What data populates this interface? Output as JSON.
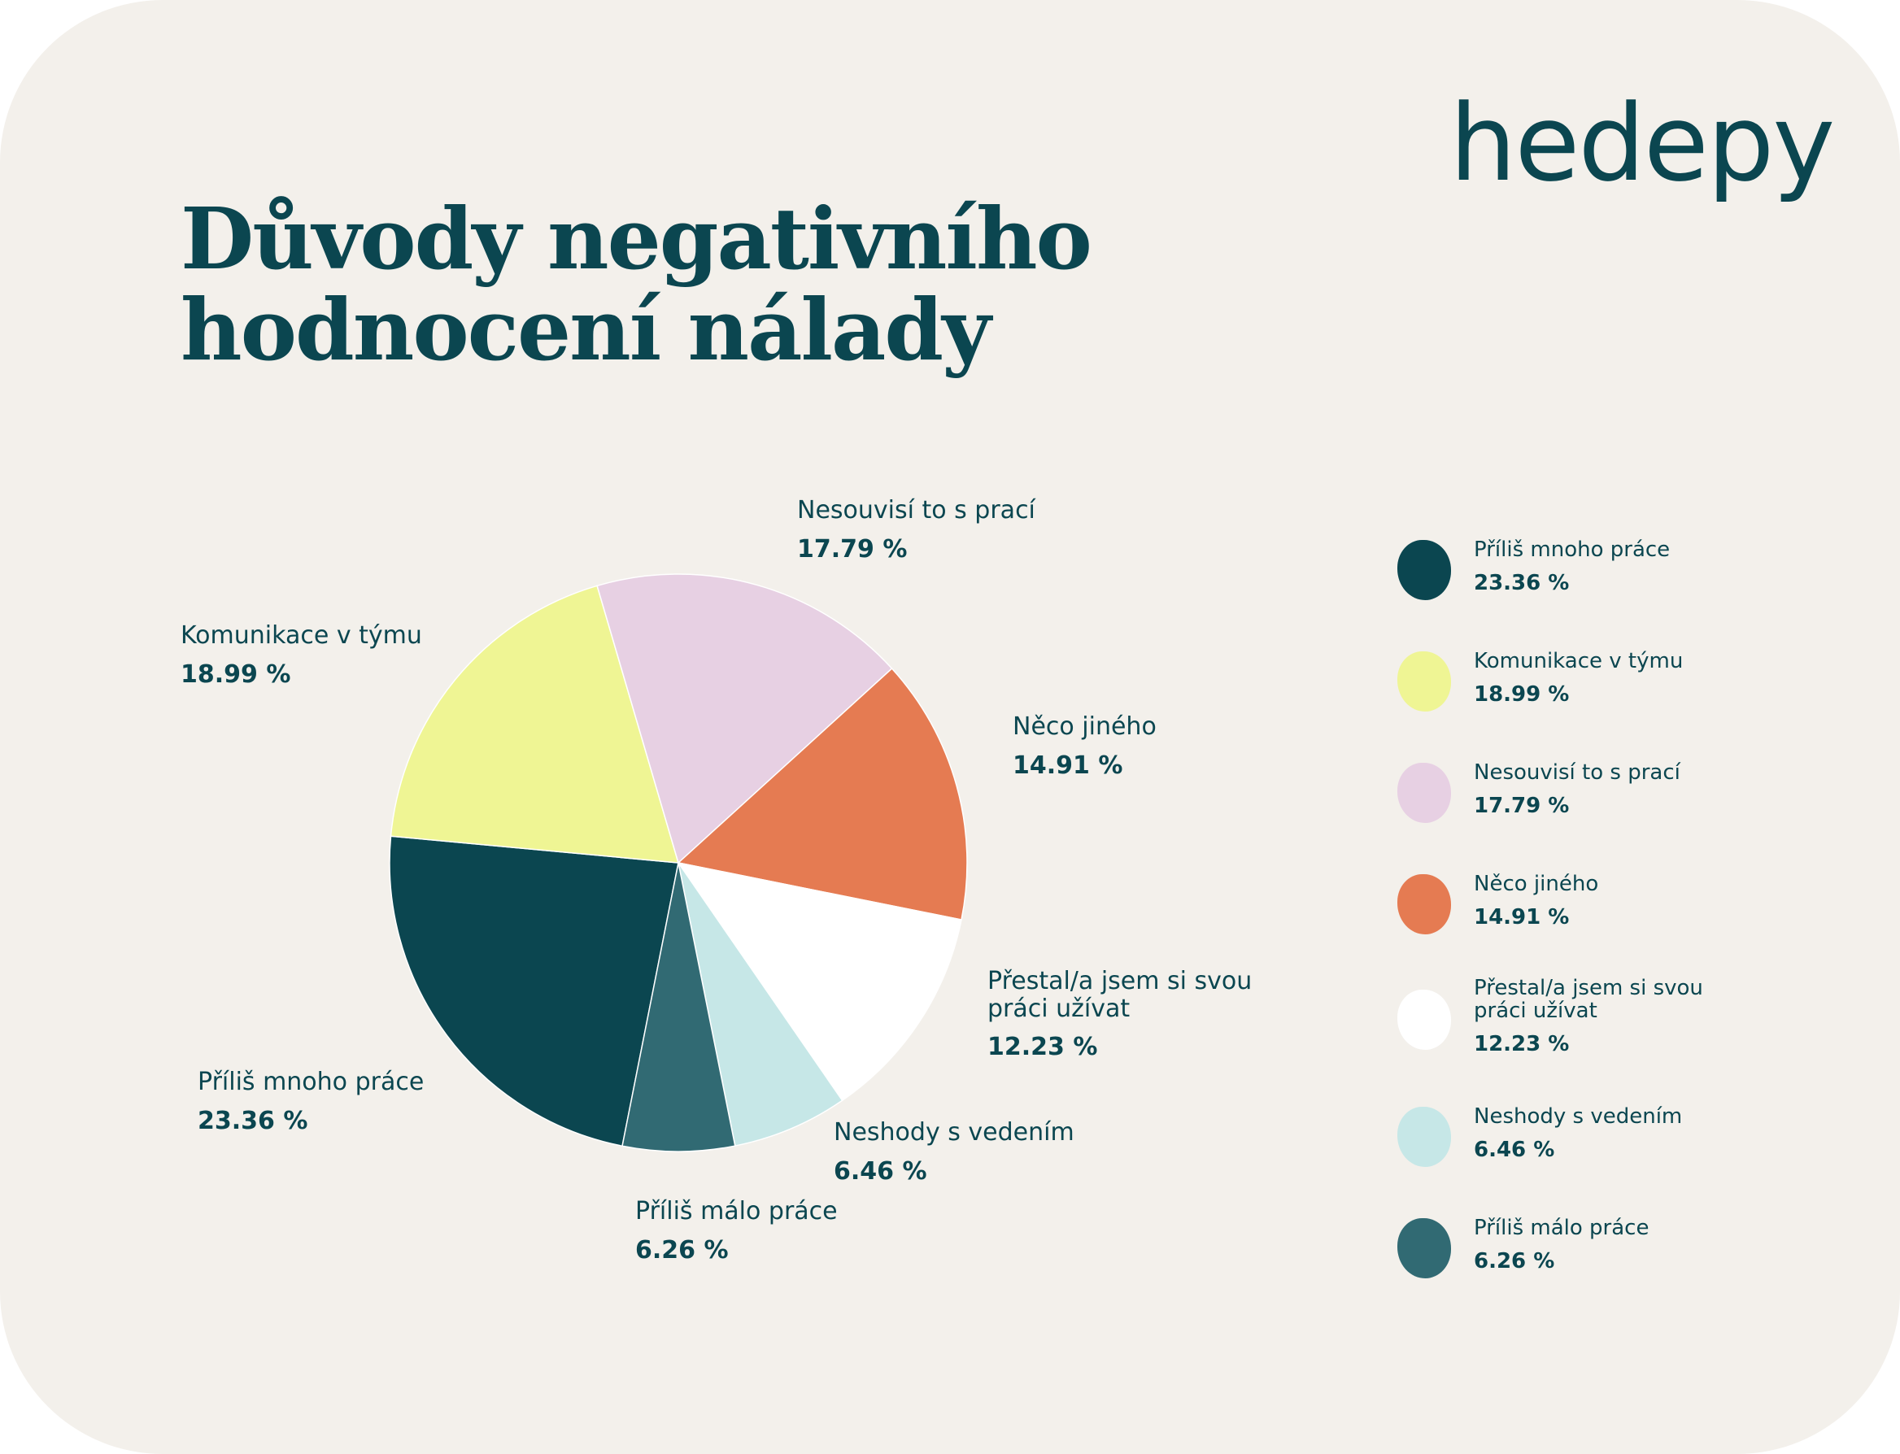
{
  "title_line1": "Důvody negativního",
  "title_line2": "hodnocení nálady",
  "logo": "hedepy",
  "chart_data": {
    "type": "pie",
    "title": "Důvody negativního hodnocení nálady",
    "slices": [
      {
        "label": "Příliš mnoho práce",
        "label_lines": [
          "Příliš mnoho práce"
        ],
        "value": 23.36,
        "display": "23.36 %",
        "color": "#0b4650"
      },
      {
        "label": "Komunikace v týmu",
        "label_lines": [
          "Komunikace v týmu"
        ],
        "value": 18.99,
        "display": "18.99 %",
        "color": "#eff594"
      },
      {
        "label": "Nesouvisí to s prací",
        "label_lines": [
          "Nesouvisí to s prací"
        ],
        "value": 17.79,
        "display": "17.79 %",
        "color": "#e7d0e3"
      },
      {
        "label": "Něco jiného",
        "label_lines": [
          "Něco jiného"
        ],
        "value": 14.91,
        "display": "14.91 %",
        "color": "#e57b52"
      },
      {
        "label": "Přestal/a jsem si svou práci užívat",
        "label_lines": [
          "Přestal/a jsem si svou",
          "práci užívat"
        ],
        "value": 12.23,
        "display": "12.23 %",
        "color": "#ffffff"
      },
      {
        "label": "Neshody s vedením",
        "label_lines": [
          "Neshody s vedením"
        ],
        "value": 6.46,
        "display": "6.46 %",
        "color": "#c6e7e7"
      },
      {
        "label": "Příliš málo práce",
        "label_lines": [
          "Příliš málo práce"
        ],
        "value": 6.26,
        "display": "6.26 %",
        "color": "#316a73"
      }
    ],
    "legend_placement": "right"
  }
}
